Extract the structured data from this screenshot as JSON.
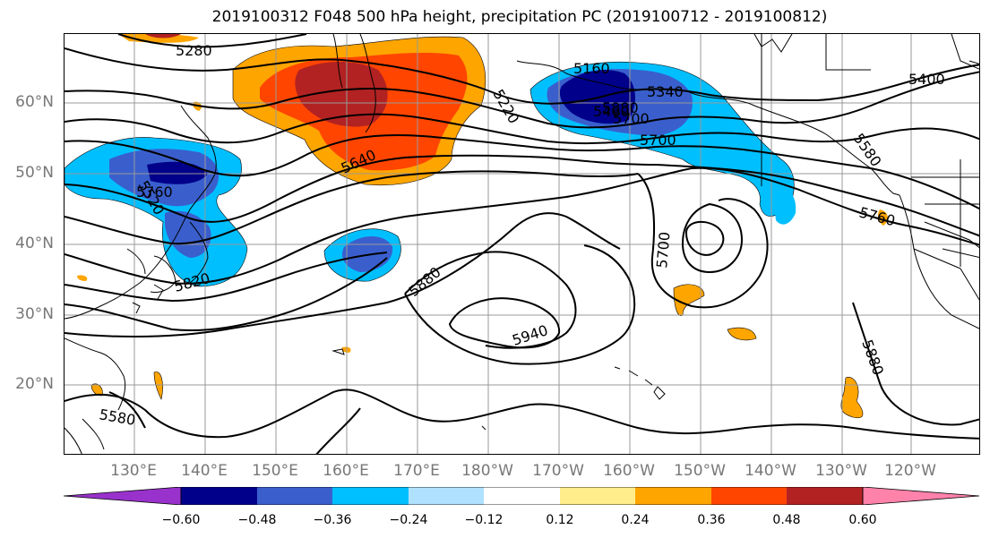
{
  "title": "2019100312 F048 500 hPa height, precipitation PC (2019100712 - 2019100812)",
  "lat_labels": [
    "60°N",
    "50°N",
    "40°N",
    "30°N",
    "20°N"
  ],
  "lon_labels": [
    "130°E",
    "140°E",
    "150°E",
    "160°E",
    "170°E",
    "180°W",
    "170°W",
    "160°W",
    "150°W",
    "140°W",
    "130°W",
    "120°W"
  ],
  "contour_labels": [
    "5280",
    "5220",
    "5160",
    "5340",
    "5400",
    "5460",
    "5520",
    "5580",
    "5640",
    "5700",
    "5760",
    "5820",
    "5880",
    "5940",
    "5700",
    "5580",
    "5880",
    "5880",
    "5760",
    "5700"
  ],
  "colorbar": {
    "ticks": [
      "−0.60",
      "−0.48",
      "−0.36",
      "−0.24",
      "−0.12",
      "0.12",
      "0.24",
      "0.36",
      "0.48",
      "0.60"
    ],
    "colors": [
      "#9932cc",
      "#00008b",
      "#3a5fcd",
      "#00bfff",
      "#b0e2ff",
      "#ffffff",
      "#ffec8b",
      "#ffa500",
      "#ff4500",
      "#b22222",
      "#ff82ab"
    ]
  }
}
